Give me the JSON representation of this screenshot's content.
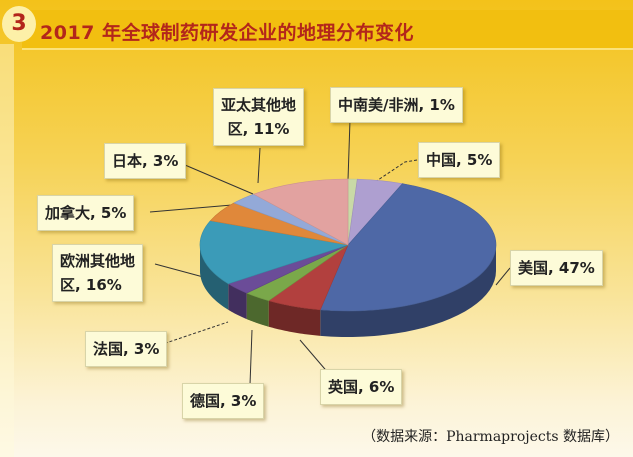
{
  "chart_data": {
    "type": "pie",
    "style": "3d",
    "title": "2017 年全球制药研发企业的地理分布变化",
    "figure_number": "3",
    "slices": [
      {
        "name": "中南美/非洲",
        "value": 1,
        "label": "中南美/非洲, 1%",
        "color": "#c9d9a6"
      },
      {
        "name": "中国",
        "value": 5,
        "label": "中国, 5%",
        "color": "#ae9fd0"
      },
      {
        "name": "美国",
        "value": 47,
        "label": "美国, 47%",
        "color": "#4e68a6"
      },
      {
        "name": "英国",
        "value": 6,
        "label": "英国, 6%",
        "color": "#b2403e"
      },
      {
        "name": "德国",
        "value": 3,
        "label": "德国, 3%",
        "color": "#7aa84a"
      },
      {
        "name": "法国",
        "value": 3,
        "label": "法国, 3%",
        "color": "#6b4c98"
      },
      {
        "name": "欧洲其他地区",
        "value": 16,
        "label_line1": "欧洲其他地",
        "label_line2": "区, 16%",
        "color": "#3b9bb8"
      },
      {
        "name": "加拿大",
        "value": 5,
        "label": "加拿大, 5%",
        "color": "#e0883a"
      },
      {
        "name": "日本",
        "value": 3,
        "label": "日本, 3%",
        "color": "#93a9d8"
      },
      {
        "name": "亚太其他地区",
        "value": 11,
        "label_line1": "亚太其他地",
        "label_line2": "区, 11%",
        "color": "#e2a2a0"
      }
    ],
    "source": "（数据来源：Pharmaprojects 数据库）"
  }
}
